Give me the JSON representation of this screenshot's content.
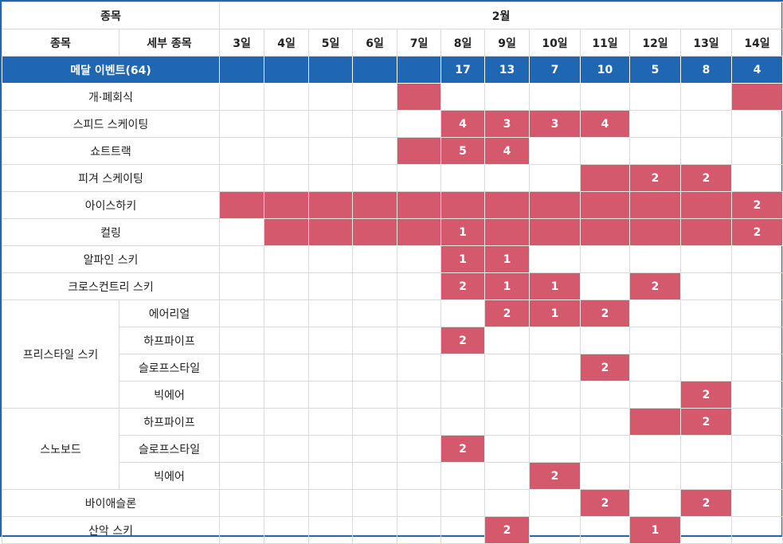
{
  "header": {
    "sport_label": "종목",
    "month_label": "2월",
    "sport_col": "종목",
    "sub_col": "세부 종목",
    "days": [
      "3일",
      "4일",
      "5일",
      "6일",
      "7일",
      "8일",
      "9일",
      "10일",
      "11일",
      "12일",
      "13일",
      "14일"
    ]
  },
  "medal": {
    "label": "메달 이벤트(64)",
    "counts": [
      "",
      "",
      "",
      "",
      "",
      "17",
      "13",
      "7",
      "10",
      "5",
      "8",
      "4"
    ]
  },
  "colors": {
    "header_blue": "#1f66b3",
    "event_red": "#d5596c"
  },
  "rows": [
    {
      "group": null,
      "name": "개·폐회식",
      "active": [
        false,
        false,
        false,
        false,
        true,
        false,
        false,
        false,
        false,
        false,
        false,
        true
      ],
      "values": [
        "",
        "",
        "",
        "",
        "",
        "",
        "",
        "",
        "",
        "",
        "",
        ""
      ]
    },
    {
      "group": null,
      "name": "스피드 스케이팅",
      "active": [
        false,
        false,
        false,
        false,
        false,
        true,
        true,
        true,
        true,
        false,
        false,
        false
      ],
      "values": [
        "",
        "",
        "",
        "",
        "",
        "4",
        "3",
        "3",
        "4",
        "",
        "",
        ""
      ]
    },
    {
      "group": null,
      "name": "쇼트트랙",
      "active": [
        false,
        false,
        false,
        false,
        true,
        true,
        true,
        false,
        false,
        false,
        false,
        false
      ],
      "values": [
        "",
        "",
        "",
        "",
        "",
        "5",
        "4",
        "",
        "",
        "",
        "",
        ""
      ]
    },
    {
      "group": null,
      "name": "피겨 스케이팅",
      "active": [
        false,
        false,
        false,
        false,
        false,
        false,
        false,
        false,
        true,
        true,
        true,
        false
      ],
      "values": [
        "",
        "",
        "",
        "",
        "",
        "",
        "",
        "",
        "",
        "2",
        "2",
        ""
      ]
    },
    {
      "group": null,
      "name": "아이스하키",
      "active": [
        true,
        true,
        true,
        true,
        true,
        true,
        true,
        true,
        true,
        true,
        true,
        true
      ],
      "values": [
        "",
        "",
        "",
        "",
        "",
        "",
        "",
        "",
        "",
        "",
        "",
        "2"
      ]
    },
    {
      "group": null,
      "name": "컬링",
      "active": [
        false,
        true,
        true,
        true,
        true,
        true,
        true,
        true,
        true,
        true,
        true,
        true
      ],
      "values": [
        "",
        "",
        "",
        "",
        "",
        "1",
        "",
        "",
        "",
        "",
        "",
        "2"
      ]
    },
    {
      "group": null,
      "name": "알파인 스키",
      "active": [
        false,
        false,
        false,
        false,
        false,
        true,
        true,
        false,
        false,
        false,
        false,
        false
      ],
      "values": [
        "",
        "",
        "",
        "",
        "",
        "1",
        "1",
        "",
        "",
        "",
        "",
        ""
      ]
    },
    {
      "group": null,
      "name": "크로스컨트리 스키",
      "active": [
        false,
        false,
        false,
        false,
        false,
        true,
        true,
        true,
        false,
        true,
        false,
        false
      ],
      "values": [
        "",
        "",
        "",
        "",
        "",
        "2",
        "1",
        "1",
        "",
        "2",
        "",
        ""
      ]
    },
    {
      "group": "프리스타일 스키",
      "name": "에어리얼",
      "active": [
        false,
        false,
        false,
        false,
        false,
        false,
        true,
        true,
        true,
        false,
        false,
        false
      ],
      "values": [
        "",
        "",
        "",
        "",
        "",
        "",
        "2",
        "1",
        "2",
        "",
        "",
        ""
      ]
    },
    {
      "group": "프리스타일 스키",
      "name": "하프파이프",
      "active": [
        false,
        false,
        false,
        false,
        false,
        true,
        false,
        false,
        false,
        false,
        false,
        false
      ],
      "values": [
        "",
        "",
        "",
        "",
        "",
        "2",
        "",
        "",
        "",
        "",
        "",
        ""
      ]
    },
    {
      "group": "프리스타일 스키",
      "name": "슬로프스타일",
      "active": [
        false,
        false,
        false,
        false,
        false,
        false,
        false,
        false,
        true,
        false,
        false,
        false
      ],
      "values": [
        "",
        "",
        "",
        "",
        "",
        "",
        "",
        "",
        "2",
        "",
        "",
        ""
      ]
    },
    {
      "group": "프리스타일 스키",
      "name": "빅에어",
      "active": [
        false,
        false,
        false,
        false,
        false,
        false,
        false,
        false,
        false,
        false,
        true,
        false
      ],
      "values": [
        "",
        "",
        "",
        "",
        "",
        "",
        "",
        "",
        "",
        "",
        "2",
        ""
      ]
    },
    {
      "group": "스노보드",
      "name": "하프파이프",
      "active": [
        false,
        false,
        false,
        false,
        false,
        false,
        false,
        false,
        false,
        true,
        true,
        false
      ],
      "values": [
        "",
        "",
        "",
        "",
        "",
        "",
        "",
        "",
        "",
        "",
        "2",
        ""
      ]
    },
    {
      "group": "스노보드",
      "name": "슬로프스타일",
      "active": [
        false,
        false,
        false,
        false,
        false,
        true,
        false,
        false,
        false,
        false,
        false,
        false
      ],
      "values": [
        "",
        "",
        "",
        "",
        "",
        "2",
        "",
        "",
        "",
        "",
        "",
        ""
      ]
    },
    {
      "group": "스노보드",
      "name": "빅에어",
      "active": [
        false,
        false,
        false,
        false,
        false,
        false,
        false,
        true,
        false,
        false,
        false,
        false
      ],
      "values": [
        "",
        "",
        "",
        "",
        "",
        "",
        "",
        "2",
        "",
        "",
        "",
        ""
      ]
    },
    {
      "group": null,
      "name": "바이애슬론",
      "active": [
        false,
        false,
        false,
        false,
        false,
        false,
        false,
        false,
        true,
        false,
        true,
        false
      ],
      "values": [
        "",
        "",
        "",
        "",
        "",
        "",
        "",
        "",
        "2",
        "",
        "2",
        ""
      ]
    },
    {
      "group": null,
      "name": "산악 스키",
      "active": [
        false,
        false,
        false,
        false,
        false,
        false,
        true,
        false,
        false,
        true,
        false,
        false
      ],
      "values": [
        "",
        "",
        "",
        "",
        "",
        "",
        "2",
        "",
        "",
        "1",
        "",
        ""
      ]
    }
  ]
}
